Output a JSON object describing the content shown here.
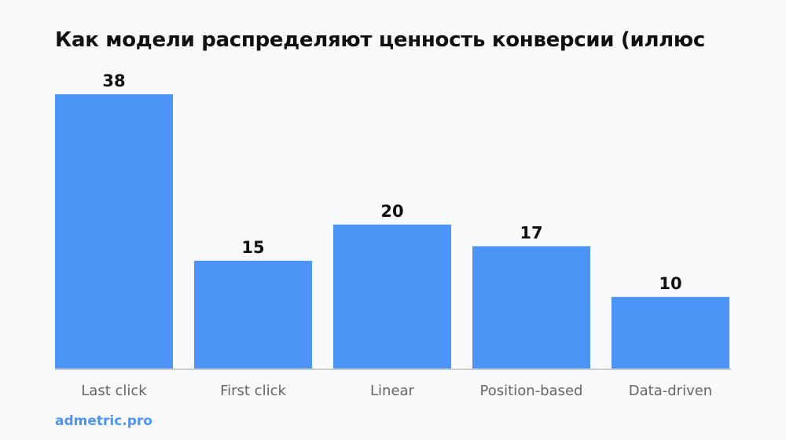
{
  "chart_data": {
    "type": "bar",
    "title": "Как модели распределяют ценность конверсии (иллюс",
    "categories": [
      "Last click",
      "First click",
      "Linear",
      "Position-based",
      "Data-driven"
    ],
    "values": [
      38,
      15,
      20,
      17,
      10
    ],
    "xlabel": "",
    "ylabel": "",
    "ylim": [
      0,
      38
    ],
    "grid": false,
    "legend": "none",
    "bar_color": "#4d94f7",
    "axis_color": "#cccccc"
  },
  "footer": {
    "brand": "admetric.pro"
  }
}
